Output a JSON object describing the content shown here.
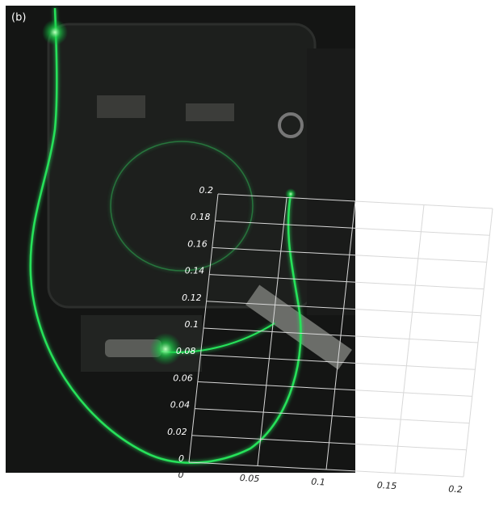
{
  "panel_label": "(b)",
  "chart_data": {
    "type": "grid",
    "xlim": [
      0,
      0.2
    ],
    "ylim": [
      0,
      0.2
    ],
    "xticks": [
      0,
      0.05,
      0.1,
      0.15,
      0.2
    ],
    "yticks": [
      0,
      0.02,
      0.04,
      0.06,
      0.08,
      0.1,
      0.12,
      0.14,
      0.16,
      0.18,
      0.2
    ],
    "grid": true
  }
}
